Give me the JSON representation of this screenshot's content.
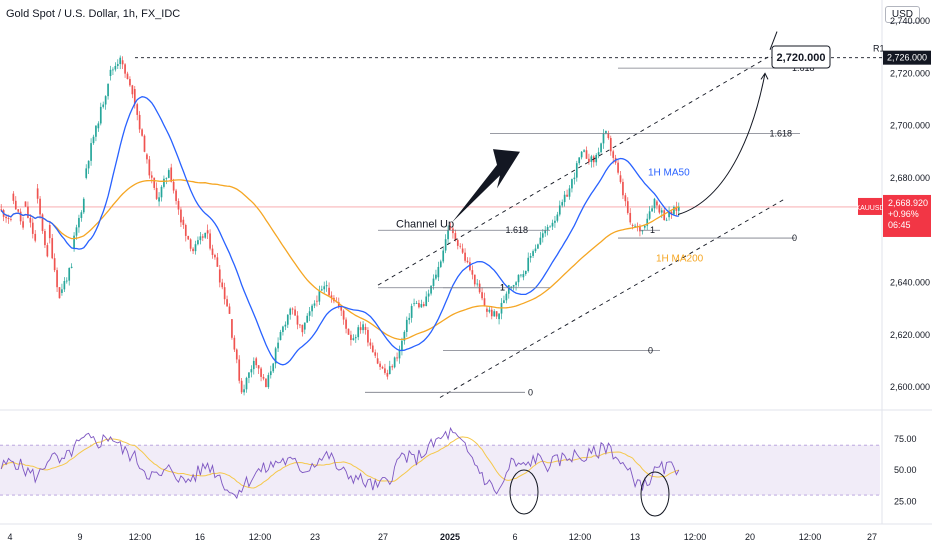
{
  "header": {
    "title": "Gold Spot / U.S. Dollar, 1h, FX_IDC",
    "currency": "USD"
  },
  "colors": {
    "candle_up": "#26a69a",
    "candle_down": "#ef5350",
    "ma50": "#2962ff",
    "ma200": "#f5a623",
    "rsi_line": "#7e57c2",
    "rsi_ma": "#f5c84b",
    "rsi_band": "#ede7f6",
    "price_badge": "#f23645",
    "r1_badge": "#131722",
    "price_line": "#f7a1a5"
  },
  "chart_data": {
    "type": "candlestick",
    "symbol": "XAUUSD",
    "timeframe": "1h",
    "price_axis": {
      "ticks": [
        "2,740.000",
        "2,720.000",
        "2,700.000",
        "2,680.000",
        "2,660.000",
        "2,640.000",
        "2,620.000",
        "2,600.000"
      ]
    },
    "time_axis": {
      "ticks": [
        "4",
        "9",
        "12:00",
        "16",
        "12:00",
        "23",
        "27",
        "2025",
        "6",
        "12:00",
        "13",
        "12:00",
        "20",
        "12:00",
        "27"
      ]
    },
    "current_price": {
      "symbol": "XAUUSD",
      "price": "2,668.920",
      "change": "+0.96%",
      "countdown": "06:45"
    },
    "r1": {
      "label": "R1",
      "value": "2,726.000"
    },
    "target": {
      "label": "2,720.000"
    },
    "channel": {
      "label": "Channel Up"
    },
    "ma_labels": {
      "ma50": "1H MA50",
      "ma200": "1H MA200"
    },
    "fib_levels": [
      {
        "name": "fib-a",
        "labels": [
          "0",
          "1",
          "1.618"
        ]
      },
      {
        "name": "fib-b",
        "labels": [
          "0",
          "1",
          "1.618"
        ]
      },
      {
        "name": "fib-c",
        "labels": [
          "0",
          "1",
          "1.618"
        ]
      }
    ],
    "price_path": [
      [
        2668,
        2664
      ],
      [
        2674,
        2661
      ],
      [
        2671,
        2656
      ],
      [
        2676,
        2650
      ],
      [
        2662,
        2634
      ],
      [
        2636,
        2646
      ],
      [
        2653,
        2672
      ],
      [
        2680,
        2700
      ],
      [
        2699,
        2716
      ],
      [
        2719,
        2726
      ],
      [
        2725,
        2712
      ],
      [
        2714,
        2690
      ],
      [
        2689,
        2672
      ],
      [
        2671,
        2683
      ],
      [
        2684,
        2663
      ],
      [
        2664,
        2652
      ],
      [
        2652,
        2659
      ],
      [
        2660,
        2646
      ],
      [
        2645,
        2628
      ],
      [
        2626,
        2598
      ],
      [
        2598,
        2610
      ],
      [
        2611,
        2600
      ],
      [
        2600,
        2617
      ],
      [
        2618,
        2630
      ],
      [
        2630,
        2621
      ],
      [
        2622,
        2632
      ],
      [
        2633,
        2639
      ],
      [
        2638,
        2631
      ],
      [
        2631,
        2618
      ],
      [
        2618,
        2624
      ],
      [
        2623,
        2612
      ],
      [
        2611,
        2604
      ],
      [
        2605,
        2614
      ],
      [
        2614,
        2631
      ],
      [
        2632,
        2631
      ],
      [
        2631,
        2643
      ],
      [
        2642,
        2660
      ],
      [
        2661,
        2654
      ],
      [
        2653,
        2643
      ],
      [
        2643,
        2631
      ],
      [
        2630,
        2627
      ],
      [
        2626,
        2639
      ],
      [
        2638,
        2643
      ],
      [
        2642,
        2652
      ],
      [
        2652,
        2660
      ],
      [
        2660,
        2666
      ],
      [
        2666,
        2676
      ],
      [
        2676,
        2690
      ],
      [
        2690,
        2686
      ],
      [
        2686,
        2698
      ],
      [
        2697,
        2682
      ],
      [
        2681,
        2663
      ],
      [
        2662,
        2660
      ],
      [
        2661,
        2672
      ],
      [
        2671,
        2664
      ],
      [
        2665,
        2669
      ]
    ],
    "rsi": {
      "ticks": [
        "75.00",
        "50.00",
        "25.00"
      ],
      "band": [
        30,
        70
      ],
      "values": [
        52,
        58,
        50,
        44,
        62,
        55,
        68,
        75,
        72,
        78,
        66,
        60,
        48,
        44,
        52,
        40,
        46,
        55,
        45,
        30,
        38,
        48,
        52,
        58,
        56,
        50,
        58,
        62,
        48,
        45,
        40,
        36,
        44,
        62,
        58,
        66,
        74,
        80,
        70,
        56,
        40,
        32,
        56,
        52,
        60,
        54,
        58,
        62,
        60,
        64,
        70,
        56,
        44,
        38,
        50,
        52
      ]
    }
  }
}
